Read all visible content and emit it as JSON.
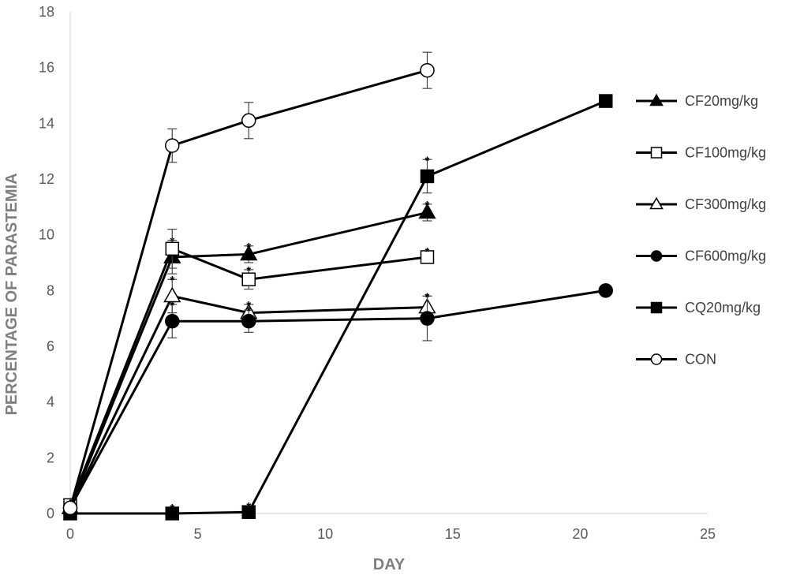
{
  "chart_data": {
    "type": "line",
    "xlabel": "DAY",
    "ylabel": "PERCENTAGE OF PARASTEMIA",
    "xlim": [
      0,
      25
    ],
    "ylim": [
      0,
      18
    ],
    "xticks": [
      0,
      5,
      10,
      15,
      20,
      25
    ],
    "yticks": [
      0,
      2,
      4,
      6,
      8,
      10,
      12,
      14,
      16,
      18
    ],
    "grid": false,
    "legend_position": "right",
    "series": [
      {
        "name": "CF20mg/kg",
        "marker": "filled-triangle",
        "x": [
          0,
          4,
          7,
          14
        ],
        "y": [
          0.2,
          9.2,
          9.3,
          10.8
        ],
        "err": [
          0,
          0.6,
          0.3,
          0.3
        ],
        "significance": [
          "",
          "*",
          "*",
          "*"
        ]
      },
      {
        "name": "CF100mg/kg",
        "marker": "open-square",
        "x": [
          0,
          4,
          7,
          14
        ],
        "y": [
          0.3,
          9.5,
          8.4,
          9.2
        ],
        "err": [
          0,
          0.7,
          0.35,
          0
        ],
        "significance": [
          "",
          "",
          "*",
          "*"
        ]
      },
      {
        "name": "CF300mg/kg",
        "marker": "open-triangle",
        "x": [
          0,
          4,
          7,
          14
        ],
        "y": [
          0.2,
          7.8,
          7.2,
          7.4
        ],
        "err": [
          0,
          0.6,
          0.3,
          0.4
        ],
        "significance": [
          "",
          "*",
          "*",
          "*"
        ]
      },
      {
        "name": "CF600mg/kg",
        "marker": "filled-circle",
        "x": [
          0,
          4,
          7,
          14,
          21
        ],
        "y": [
          0.2,
          6.9,
          6.9,
          7.0,
          8.0
        ],
        "err": [
          0,
          0.6,
          0.4,
          0.8,
          0
        ],
        "significance": [
          "",
          "*",
          "*",
          "*",
          ""
        ]
      },
      {
        "name": "CQ20mg/kg",
        "marker": "filled-square",
        "x": [
          0,
          4,
          7,
          14,
          21
        ],
        "y": [
          0.0,
          0.0,
          0.05,
          12.1,
          14.8
        ],
        "err": [
          0,
          0,
          0,
          0.6,
          0
        ],
        "significance": [
          "",
          "*",
          "*",
          "*",
          ""
        ]
      },
      {
        "name": "CON",
        "marker": "open-circle",
        "x": [
          0,
          4,
          7,
          14
        ],
        "y": [
          0.2,
          13.2,
          14.1,
          15.9
        ],
        "err": [
          0,
          0.6,
          0.65,
          0.65
        ],
        "significance": [
          "",
          "",
          "",
          ""
        ]
      }
    ]
  }
}
